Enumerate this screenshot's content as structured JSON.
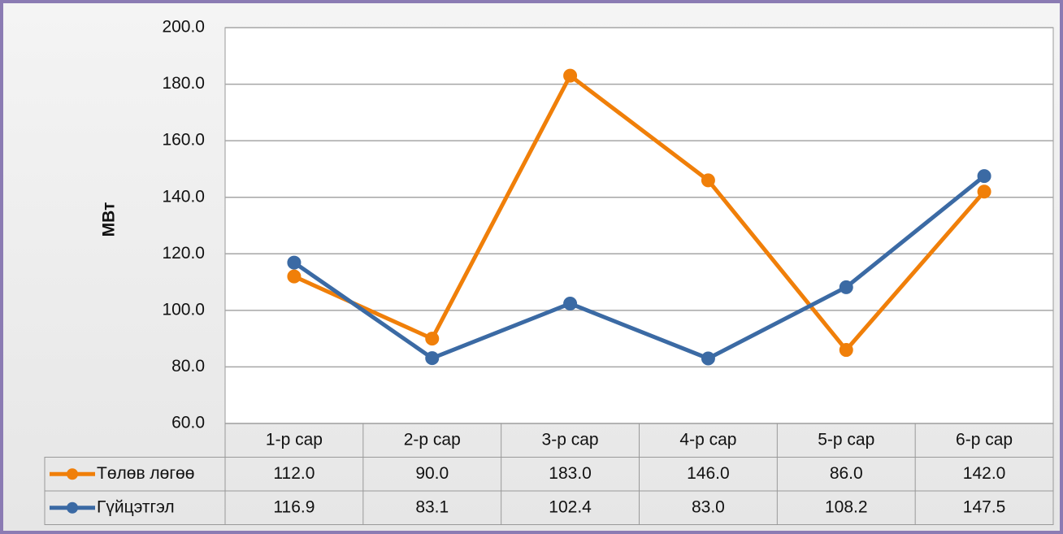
{
  "chart_data": {
    "type": "line",
    "y_label": "МВт",
    "categories": [
      "1-р сар",
      "2-р сар",
      "3-р сар",
      "4-р сар",
      "5-р сар",
      "6-р сар"
    ],
    "series": [
      {
        "name": "Төлөв лөгөө",
        "color": "#f07f09",
        "values": [
          112,
          90,
          183,
          146,
          86,
          142
        ],
        "value_labels": [
          "112.0",
          "90.0",
          "183.0",
          "146.0",
          "86.0",
          "142.0"
        ]
      },
      {
        "name": "Гүйцэтгэл",
        "color": "#3b6aa4",
        "values": [
          116.9,
          83.1,
          102.4,
          83,
          108.2,
          147.5
        ],
        "value_labels": [
          "116.9",
          "83.1",
          "102.4",
          "83.0",
          "108.2",
          "147.5"
        ]
      }
    ],
    "ylim": [
      60,
      200
    ],
    "yticks": [
      {
        "value": 60,
        "label": "60.0"
      },
      {
        "value": 80,
        "label": "80.0"
      },
      {
        "value": 100,
        "label": "100.0"
      },
      {
        "value": 120,
        "label": "120.0"
      },
      {
        "value": 140,
        "label": "140.0"
      },
      {
        "value": 160,
        "label": "160.0"
      },
      {
        "value": 180,
        "label": "180.0"
      },
      {
        "value": 200,
        "label": "200.0"
      }
    ],
    "grid": true
  }
}
